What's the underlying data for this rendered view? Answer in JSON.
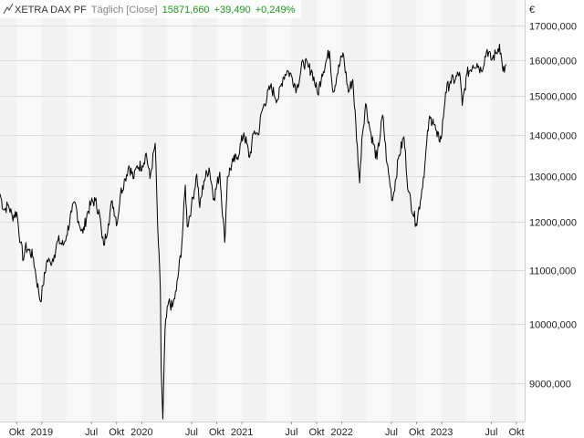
{
  "chart_data": {
    "type": "line",
    "header": {
      "instrument": "XETRA DAX PF",
      "period": "Täglich [Close]",
      "last": "15871,660",
      "change": "+39,490",
      "change_pct": "+0,249%"
    },
    "currency": "€",
    "y_scale": "log",
    "ylim": [
      8400,
      17800
    ],
    "xlim": [
      "2018-08-01",
      "2023-10-31"
    ],
    "y_ticks": [
      {
        "value": 9000,
        "label": "9000,000"
      },
      {
        "value": 10000,
        "label": "10000,000"
      },
      {
        "value": 11000,
        "label": "11000,000"
      },
      {
        "value": 12000,
        "label": "12000,000"
      },
      {
        "value": 13000,
        "label": "13000,000"
      },
      {
        "value": 14000,
        "label": "14000,000"
      },
      {
        "value": 15000,
        "label": "15000,000"
      },
      {
        "value": 16000,
        "label": "16000,000"
      },
      {
        "value": 17000,
        "label": "17000,000"
      }
    ],
    "x_ticks": [
      {
        "date": "2018-10-01",
        "label": "Okt"
      },
      {
        "date": "2019-01-01",
        "label": "2019"
      },
      {
        "date": "2019-07-01",
        "label": "Jul"
      },
      {
        "date": "2019-10-01",
        "label": "Okt"
      },
      {
        "date": "2020-01-01",
        "label": "2020"
      },
      {
        "date": "2020-07-01",
        "label": "Jul"
      },
      {
        "date": "2020-10-01",
        "label": "Okt"
      },
      {
        "date": "2021-01-01",
        "label": "2021"
      },
      {
        "date": "2021-07-01",
        "label": "Jul"
      },
      {
        "date": "2021-10-01",
        "label": "Okt"
      },
      {
        "date": "2022-01-01",
        "label": "2022"
      },
      {
        "date": "2022-07-01",
        "label": "Jul"
      },
      {
        "date": "2022-10-01",
        "label": "Okt"
      },
      {
        "date": "2023-01-01",
        "label": "2023"
      },
      {
        "date": "2023-07-01",
        "label": "Jul"
      },
      {
        "date": "2023-10-01",
        "label": "Okt"
      }
    ],
    "series": [
      {
        "color": "#000000",
        "points": [
          [
            "2018-08-01",
            12600
          ],
          [
            "2018-08-15",
            12250
          ],
          [
            "2018-09-01",
            12350
          ],
          [
            "2018-09-15",
            12100
          ],
          [
            "2018-10-01",
            12200
          ],
          [
            "2018-10-15",
            11550
          ],
          [
            "2018-10-26",
            11200
          ],
          [
            "2018-11-01",
            11450
          ],
          [
            "2018-11-15",
            11400
          ],
          [
            "2018-12-01",
            11250
          ],
          [
            "2018-12-10",
            10900
          ],
          [
            "2018-12-20",
            10600
          ],
          [
            "2018-12-27",
            10400
          ],
          [
            "2019-01-05",
            10700
          ],
          [
            "2019-01-20",
            11200
          ],
          [
            "2019-02-01",
            11150
          ],
          [
            "2019-02-15",
            11300
          ],
          [
            "2019-03-01",
            11600
          ],
          [
            "2019-03-20",
            11500
          ],
          [
            "2019-04-01",
            11700
          ],
          [
            "2019-04-20",
            12200
          ],
          [
            "2019-05-03",
            12400
          ],
          [
            "2019-05-15",
            12000
          ],
          [
            "2019-05-31",
            11750
          ],
          [
            "2019-06-15",
            12150
          ],
          [
            "2019-06-30",
            12400
          ],
          [
            "2019-07-15",
            12450
          ],
          [
            "2019-07-31",
            12150
          ],
          [
            "2019-08-09",
            11650
          ],
          [
            "2019-08-15",
            11500
          ],
          [
            "2019-09-01",
            11950
          ],
          [
            "2019-09-15",
            12450
          ],
          [
            "2019-10-03",
            11950
          ],
          [
            "2019-10-15",
            12600
          ],
          [
            "2019-11-01",
            12950
          ],
          [
            "2019-11-15",
            13250
          ],
          [
            "2019-12-03",
            12950
          ],
          [
            "2019-12-15",
            13250
          ],
          [
            "2020-01-03",
            13250
          ],
          [
            "2020-01-17",
            13550
          ],
          [
            "2020-01-31",
            12950
          ],
          [
            "2020-02-19",
            13790
          ],
          [
            "2020-02-28",
            11900
          ],
          [
            "2020-03-09",
            10600
          ],
          [
            "2020-03-12",
            9200
          ],
          [
            "2020-03-18",
            8440
          ],
          [
            "2020-03-26",
            9900
          ],
          [
            "2020-04-08",
            10400
          ],
          [
            "2020-04-22",
            10300
          ],
          [
            "2020-05-06",
            10600
          ],
          [
            "2020-05-26",
            11500
          ],
          [
            "2020-06-08",
            12800
          ],
          [
            "2020-06-15",
            11900
          ],
          [
            "2020-06-30",
            12300
          ],
          [
            "2020-07-20",
            13050
          ],
          [
            "2020-07-31",
            12300
          ],
          [
            "2020-08-15",
            12900
          ],
          [
            "2020-09-03",
            13200
          ],
          [
            "2020-09-21",
            12500
          ],
          [
            "2020-10-12",
            13100
          ],
          [
            "2020-10-30",
            11560
          ],
          [
            "2020-11-09",
            13000
          ],
          [
            "2020-11-30",
            13350
          ],
          [
            "2020-12-15",
            13450
          ],
          [
            "2021-01-08",
            14050
          ],
          [
            "2021-01-29",
            13450
          ],
          [
            "2021-02-15",
            14100
          ],
          [
            "2021-03-01",
            14000
          ],
          [
            "2021-03-15",
            14600
          ],
          [
            "2021-04-15",
            15250
          ],
          [
            "2021-05-12",
            14900
          ],
          [
            "2021-05-31",
            15500
          ],
          [
            "2021-06-15",
            15700
          ],
          [
            "2021-07-01",
            15550
          ],
          [
            "2021-07-20",
            15200
          ],
          [
            "2021-08-13",
            15950
          ],
          [
            "2021-08-31",
            15800
          ],
          [
            "2021-09-15",
            15650
          ],
          [
            "2021-10-05",
            15050
          ],
          [
            "2021-10-20",
            15600
          ],
          [
            "2021-11-17",
            16250
          ],
          [
            "2021-11-30",
            15100
          ],
          [
            "2021-12-15",
            15600
          ],
          [
            "2022-01-05",
            16200
          ],
          [
            "2022-01-25",
            15100
          ],
          [
            "2022-02-10",
            15450
          ],
          [
            "2022-03-07",
            12850
          ],
          [
            "2022-03-15",
            13900
          ],
          [
            "2022-03-29",
            14800
          ],
          [
            "2022-04-15",
            14100
          ],
          [
            "2022-05-09",
            13400
          ],
          [
            "2022-05-30",
            14500
          ],
          [
            "2022-06-15",
            13300
          ],
          [
            "2022-07-05",
            12450
          ],
          [
            "2022-07-29",
            13500
          ],
          [
            "2022-08-16",
            13950
          ],
          [
            "2022-09-01",
            12650
          ],
          [
            "2022-09-29",
            11950
          ],
          [
            "2022-10-15",
            12450
          ],
          [
            "2022-10-31",
            13250
          ],
          [
            "2022-11-15",
            14350
          ],
          [
            "2022-11-30",
            14400
          ],
          [
            "2022-12-15",
            13950
          ],
          [
            "2022-12-30",
            13900
          ],
          [
            "2023-01-15",
            15100
          ],
          [
            "2023-02-01",
            15400
          ],
          [
            "2023-02-20",
            15450
          ],
          [
            "2023-03-07",
            15650
          ],
          [
            "2023-03-17",
            14750
          ],
          [
            "2023-04-03",
            15600
          ],
          [
            "2023-04-25",
            15850
          ],
          [
            "2023-05-10",
            15900
          ],
          [
            "2023-05-25",
            15700
          ],
          [
            "2023-06-16",
            16300
          ],
          [
            "2023-06-30",
            16000
          ],
          [
            "2023-07-20",
            16200
          ],
          [
            "2023-07-31",
            16450
          ],
          [
            "2023-08-10",
            15850
          ],
          [
            "2023-08-18",
            15650
          ],
          [
            "2023-08-24",
            15871
          ]
        ]
      }
    ]
  }
}
